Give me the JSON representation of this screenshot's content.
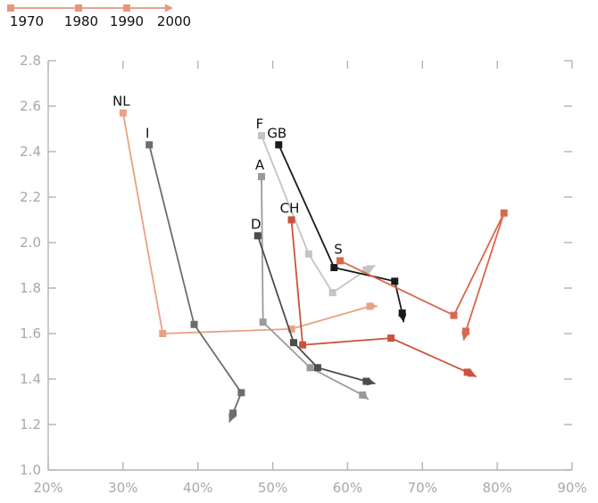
{
  "chart_data": {
    "type": "line",
    "xlabel": "",
    "ylabel": "",
    "xlim": [
      20,
      90
    ],
    "ylim": [
      1.0,
      2.8
    ],
    "x_ticks": [
      "20%",
      "30%",
      "40%",
      "50%",
      "60%",
      "70%",
      "80%",
      "90%"
    ],
    "y_ticks": [
      "1.0",
      "1.2",
      "1.4",
      "1.6",
      "1.8",
      "2.0",
      "2.2",
      "2.4",
      "2.6",
      "2.8"
    ],
    "grid": false,
    "legend": {
      "placement": "top-left",
      "labels": [
        "1970",
        "1980",
        "1990",
        "2000"
      ],
      "color": "#e8967a"
    },
    "series": [
      {
        "name": "NL",
        "color": "#eaa184",
        "values": [
          [
            30.0,
            2.57
          ],
          [
            35.3,
            1.6
          ],
          [
            52.5,
            1.62
          ],
          [
            63.0,
            1.72
          ],
          [
            64.0,
            1.72
          ]
        ]
      },
      {
        "name": "I",
        "color": "#6d6d6d",
        "values": [
          [
            33.5,
            2.43
          ],
          [
            39.5,
            1.64
          ],
          [
            45.8,
            1.34
          ],
          [
            44.7,
            1.25
          ],
          [
            44.2,
            1.21
          ]
        ]
      },
      {
        "name": "F",
        "color": "#c4c4c4",
        "values": [
          [
            48.5,
            2.47
          ],
          [
            54.8,
            1.95
          ],
          [
            58.0,
            1.78
          ],
          [
            62.5,
            1.88
          ],
          [
            63.7,
            1.9
          ]
        ]
      },
      {
        "name": "GB",
        "color": "#1a1a1a",
        "values": [
          [
            50.8,
            2.43
          ],
          [
            58.2,
            1.89
          ],
          [
            66.3,
            1.83
          ],
          [
            67.3,
            1.69
          ],
          [
            67.5,
            1.65
          ]
        ]
      },
      {
        "name": "A",
        "color": "#9a9a9a",
        "values": [
          [
            48.5,
            2.29
          ],
          [
            48.7,
            1.65
          ],
          [
            55.0,
            1.45
          ],
          [
            62.0,
            1.33
          ],
          [
            62.8,
            1.31
          ]
        ]
      },
      {
        "name": "D",
        "color": "#4c4c4c",
        "values": [
          [
            48.0,
            2.03
          ],
          [
            52.8,
            1.56
          ],
          [
            56.0,
            1.45
          ],
          [
            62.5,
            1.39
          ],
          [
            63.7,
            1.38
          ]
        ]
      },
      {
        "name": "CH",
        "color": "#c9533e",
        "values": [
          [
            52.5,
            2.1
          ],
          [
            54.0,
            1.55
          ],
          [
            65.8,
            1.58
          ],
          [
            76.0,
            1.43
          ],
          [
            77.2,
            1.41
          ]
        ]
      },
      {
        "name": "S",
        "color": "#d9674c",
        "values": [
          [
            59.0,
            1.92
          ],
          [
            74.2,
            1.68
          ],
          [
            80.9,
            2.13
          ],
          [
            75.8,
            1.61
          ],
          [
            75.5,
            1.57
          ]
        ]
      }
    ]
  }
}
